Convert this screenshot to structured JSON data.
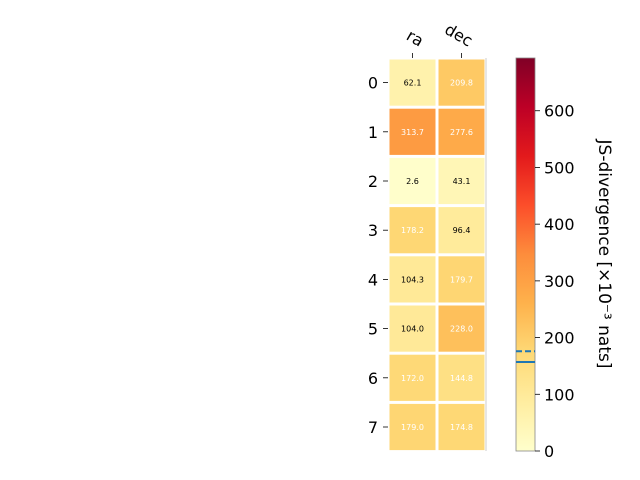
{
  "chart_data": {
    "type": "heatmap",
    "columns": [
      "ra",
      "dec"
    ],
    "rows": [
      "0",
      "1",
      "2",
      "3",
      "4",
      "5",
      "6",
      "7"
    ],
    "values": [
      [
        62.1,
        209.8
      ],
      [
        313.7,
        277.6
      ],
      [
        2.6,
        43.1
      ],
      [
        178.2,
        96.4
      ],
      [
        104.3,
        179.7
      ],
      [
        104.0,
        228.0
      ],
      [
        172.0,
        144.8
      ],
      [
        179.0,
        174.8
      ]
    ],
    "cell_labels": [
      [
        "62.1",
        "209.8"
      ],
      [
        "313.7",
        "277.6"
      ],
      [
        "2.6",
        "43.1"
      ],
      [
        "178.2",
        "96.4"
      ],
      [
        "104.3",
        "179.7"
      ],
      [
        "104.0",
        "228.0"
      ],
      [
        "172.0",
        "144.8"
      ],
      [
        "179.0",
        "174.8"
      ]
    ],
    "colorbar": {
      "label": "JS-divergence [×10⁻³ nats]",
      "range": [
        0,
        693
      ],
      "ticks": [
        0,
        100,
        200,
        300,
        400,
        500,
        600
      ],
      "tick_labels": [
        "0",
        "100",
        "200",
        "300",
        "400",
        "500",
        "600"
      ],
      "colormap": "YlOrRd",
      "marker_lines": [
        {
          "value": 157,
          "style": "solid",
          "color": "#1f77b4"
        },
        {
          "value": 176,
          "style": "dashed",
          "color": "#1f77b4"
        }
      ]
    }
  }
}
